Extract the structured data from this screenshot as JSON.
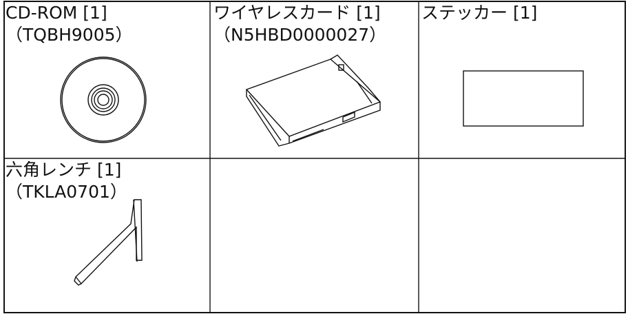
{
  "items": [
    {
      "name": "CD-ROM [1]",
      "code": "（TQBH9005）"
    },
    {
      "name": "ワイヤレスカード [1]",
      "code": "（N5HBD0000027）"
    },
    {
      "name": "ステッカー [1]"
    },
    {
      "name": "六角レンチ [1]",
      "code": "（TKLA0701）"
    }
  ]
}
